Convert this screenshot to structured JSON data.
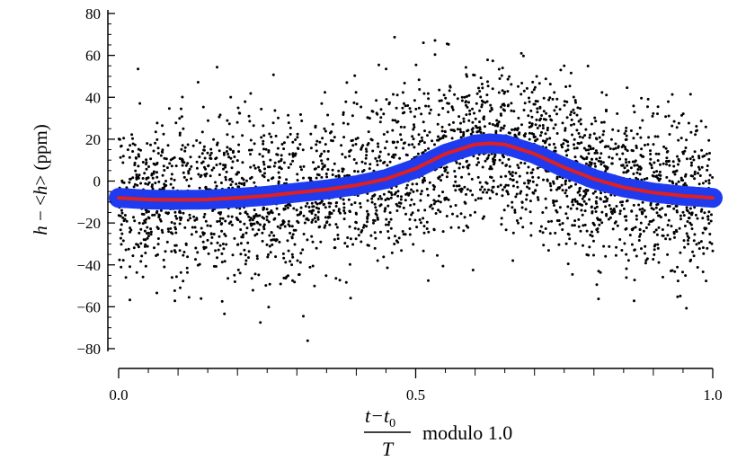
{
  "chart_data": {
    "type": "scatter",
    "title": "",
    "ylabel": {
      "var": "h",
      "minus": " − ",
      "lt": "<",
      "mean": "h",
      "gt": ">",
      "unit": " (ppm)"
    },
    "xlabel": {
      "numerator": "t−t",
      "numerator_sub": "0",
      "denominator": "T",
      "suffix": "modulo 1.0"
    },
    "xlim": [
      0.0,
      1.0
    ],
    "ylim": [
      -80,
      80
    ],
    "x_ticks": [
      0.0,
      0.5,
      1.0
    ],
    "x_tick_labels": [
      "0.0",
      "0.5",
      "1.0"
    ],
    "y_ticks": [
      -80,
      -60,
      -40,
      -20,
      0,
      20,
      40,
      60,
      80
    ],
    "y_tick_labels": [
      "−80",
      "−60",
      "−40",
      "−20",
      "0",
      "20",
      "40",
      "60",
      "80"
    ],
    "grid": false,
    "legend": "none",
    "series": [
      {
        "kind": "scatter",
        "color": "#000000",
        "n_points": 3000,
        "scatter_sigma": 19,
        "follows": "model"
      },
      {
        "kind": "band",
        "color": "#1f3bf0",
        "x": [
          0.0,
          0.05,
          0.1,
          0.15,
          0.2,
          0.25,
          0.3,
          0.35,
          0.4,
          0.45,
          0.5,
          0.55,
          0.6,
          0.625,
          0.65,
          0.7,
          0.75,
          0.8,
          0.85,
          0.9,
          0.95,
          1.0
        ],
        "y": [
          -8,
          -8.8,
          -9,
          -8.8,
          -8,
          -7,
          -5.5,
          -4,
          -2,
          1,
          6,
          13,
          17.5,
          18,
          17.5,
          13,
          6.5,
          1,
          -3,
          -5.5,
          -7,
          -8
        ]
      },
      {
        "kind": "line",
        "color": "#e02020",
        "x": [
          0.0,
          0.05,
          0.1,
          0.15,
          0.2,
          0.25,
          0.3,
          0.35,
          0.4,
          0.45,
          0.5,
          0.55,
          0.6,
          0.625,
          0.65,
          0.7,
          0.75,
          0.8,
          0.85,
          0.9,
          0.95,
          1.0
        ],
        "y": [
          -8,
          -8.8,
          -9,
          -8.8,
          -8,
          -7,
          -5.5,
          -4,
          -2,
          1,
          6,
          13,
          17.5,
          18,
          17.5,
          13,
          6.5,
          1,
          -3,
          -5.5,
          -7,
          -8
        ]
      }
    ]
  }
}
